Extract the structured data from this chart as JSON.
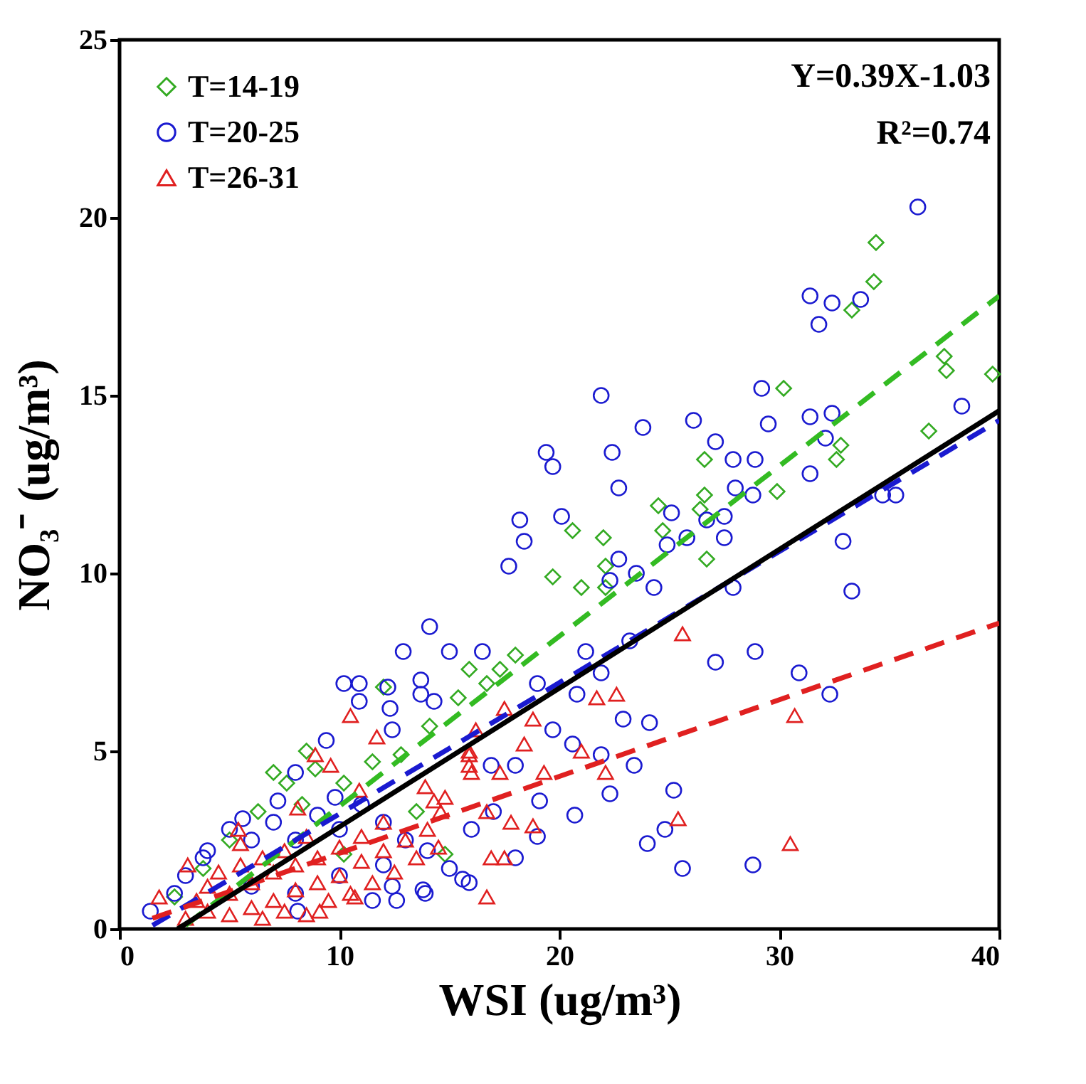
{
  "chart_data": {
    "type": "scatter",
    "xlabel": "WSI (ug/m³)",
    "ylabel": "NO₃⁻ (ug/m³)",
    "xlim": [
      0,
      40
    ],
    "ylim": [
      0,
      25
    ],
    "xticks": [
      0,
      10,
      20,
      30,
      40
    ],
    "yticks": [
      0,
      5,
      10,
      15,
      20,
      25
    ],
    "grid": false,
    "legend": "top left",
    "annotations": [
      "Y=0.39X-1.03",
      "R²=0.74"
    ],
    "series": [
      {
        "name": "T=14-19",
        "color": "#33aa22",
        "marker": "diamond",
        "x": [
          34.4,
          34.3,
          33.3,
          37.5,
          37.6,
          39.7,
          36.8,
          32.8,
          32.6,
          30.2,
          29.9,
          26.6,
          26.6,
          26.4,
          26.7,
          24.5,
          24.7,
          22.0,
          20.6,
          19.7,
          21.0,
          22.1,
          22.1,
          17.3,
          18.0,
          16.7,
          15.4,
          14.1,
          12.8,
          11.5,
          10.2,
          8.9,
          7.6,
          6.3,
          5.0,
          3.8,
          2.5,
          8.3,
          13.5,
          14.8,
          10.2,
          7.0,
          8.5,
          12.0,
          15.9
        ],
        "values": [
          19.3,
          18.2,
          17.4,
          16.1,
          15.7,
          15.6,
          14.0,
          13.6,
          13.2,
          15.2,
          12.3,
          13.2,
          12.2,
          11.8,
          10.4,
          11.9,
          11.2,
          11.0,
          11.2,
          9.9,
          9.6,
          10.2,
          9.6,
          7.3,
          7.7,
          6.9,
          6.5,
          5.7,
          4.9,
          4.7,
          4.1,
          4.5,
          4.1,
          3.3,
          2.5,
          1.7,
          0.9,
          3.5,
          3.3,
          2.1,
          2.1,
          4.4,
          5.0,
          6.8,
          7.3
        ]
      },
      {
        "name": "T=20-25",
        "color": "#1a1ad0",
        "marker": "circle",
        "x": [
          36.3,
          31.4,
          32.4,
          33.7,
          31.8,
          38.3,
          29.2,
          21.9,
          23.8,
          26.1,
          27.1,
          19.4,
          19.7,
          22.4,
          22.7,
          27.9,
          28.9,
          29.5,
          31.4,
          32.4,
          32.1,
          31.4,
          28.0,
          28.8,
          27.5,
          27.5,
          26.7,
          25.1,
          25.8,
          24.9,
          22.7,
          23.5,
          22.3,
          24.3,
          18.2,
          18.4,
          17.7,
          20.1,
          34.7,
          35.3,
          32.9,
          33.3,
          27.9,
          27.1,
          28.9,
          30.9,
          32.3,
          24.1,
          22.9,
          25.2,
          24.8,
          24.0,
          25.6,
          28.8,
          22.3,
          23.4,
          20.7,
          19.0,
          15.6,
          13.8,
          12.6,
          14.1,
          12.9,
          15.0,
          16.5,
          21.2,
          23.2,
          20.8,
          21.9,
          19.0,
          20.6,
          19.7,
          21.9,
          19.1,
          18.0,
          16.9,
          12.4,
          13.7,
          12.2,
          14.3,
          10.2,
          10.9,
          12.3,
          10.9,
          13.7,
          9.4,
          8.0,
          7.2,
          5.6,
          3.8,
          1.4,
          2.5,
          13.9,
          12.4,
          11.5,
          8.1,
          9.8,
          15.0,
          15.9,
          3.0,
          4.0,
          5.0,
          6.0,
          7.0,
          8.0,
          9.0,
          10.0,
          11.0,
          12.0,
          13.0,
          6.0,
          8.0,
          10.0,
          12.0,
          14.0,
          16.0,
          17.0,
          18.0
        ],
        "values": [
          20.3,
          17.8,
          17.6,
          17.7,
          17.0,
          14.7,
          15.2,
          15.0,
          14.1,
          14.3,
          13.7,
          13.4,
          13.0,
          13.4,
          12.4,
          13.2,
          13.2,
          14.2,
          14.4,
          14.5,
          13.8,
          12.8,
          12.4,
          12.2,
          11.6,
          11.0,
          11.5,
          11.7,
          11.0,
          10.8,
          10.4,
          10.0,
          9.8,
          9.6,
          11.5,
          10.9,
          10.2,
          11.6,
          12.2,
          12.2,
          10.9,
          9.5,
          9.6,
          7.5,
          7.8,
          7.2,
          6.6,
          5.8,
          5.9,
          3.9,
          2.8,
          2.4,
          1.7,
          1.8,
          3.8,
          4.6,
          3.2,
          2.6,
          1.4,
          1.1,
          0.8,
          8.5,
          7.8,
          7.8,
          7.8,
          7.8,
          8.1,
          6.6,
          7.2,
          6.9,
          5.2,
          5.6,
          4.9,
          3.6,
          4.6,
          4.6,
          5.6,
          7.0,
          6.8,
          6.4,
          6.9,
          6.9,
          6.2,
          6.4,
          6.6,
          5.3,
          4.4,
          3.6,
          3.1,
          2.0,
          0.5,
          1.0,
          1.0,
          1.2,
          0.8,
          0.5,
          3.7,
          1.7,
          1.3,
          1.5,
          2.2,
          2.8,
          2.5,
          3.0,
          2.5,
          3.2,
          2.8,
          3.5,
          3.0,
          2.5,
          1.2,
          1.0,
          1.5,
          1.8,
          2.2,
          2.8,
          3.3,
          2.0
        ]
      },
      {
        "name": "T=26-31",
        "color": "#e02020",
        "marker": "triangle",
        "x": [
          25.6,
          30.7,
          30.5,
          25.4,
          22.6,
          21.7,
          22.1,
          21.0,
          19.3,
          18.8,
          17.5,
          18.4,
          17.3,
          16.2,
          15.9,
          16.0,
          16.7,
          17.8,
          18.8,
          17.5,
          16.9,
          16.7,
          14.3,
          14.8,
          13.9,
          11.7,
          10.5,
          8.9,
          9.6,
          10.9,
          8.1,
          5.4,
          3.1,
          1.8,
          15.9,
          15.9,
          14.6,
          9.1,
          10.7,
          3.0,
          3.5,
          4.0,
          4.0,
          4.5,
          5.0,
          5.0,
          5.5,
          5.5,
          6.0,
          6.0,
          6.5,
          6.5,
          7.0,
          7.0,
          7.5,
          7.5,
          8.0,
          8.0,
          8.5,
          8.5,
          9.0,
          9.0,
          9.5,
          10.0,
          10.0,
          10.5,
          11.0,
          11.0,
          11.5,
          12.0,
          12.0,
          12.5,
          13.0,
          13.5,
          14.0,
          14.5
        ],
        "values": [
          8.3,
          6.0,
          2.4,
          3.1,
          6.6,
          6.5,
          4.4,
          5.0,
          4.4,
          5.9,
          6.2,
          5.2,
          4.4,
          5.6,
          4.9,
          4.4,
          3.3,
          3.0,
          2.9,
          2.0,
          2.0,
          0.9,
          3.6,
          3.7,
          4.0,
          5.4,
          6.0,
          4.9,
          4.6,
          3.9,
          3.4,
          2.8,
          1.8,
          0.9,
          5.0,
          4.6,
          3.3,
          0.5,
          0.9,
          0.3,
          0.8,
          0.5,
          1.2,
          1.6,
          0.4,
          1.0,
          1.8,
          2.4,
          0.6,
          1.3,
          2.0,
          0.3,
          0.8,
          1.6,
          2.2,
          0.5,
          1.1,
          1.8,
          2.6,
          0.4,
          1.3,
          2.0,
          0.8,
          1.5,
          2.3,
          1.0,
          1.9,
          2.6,
          1.3,
          2.2,
          3.0,
          1.6,
          2.5,
          2.0,
          2.8,
          2.3
        ]
      },
      {
        "type": "line",
        "color": "#33bb22",
        "line_style": "dashed",
        "x": [
          3.0,
          40
        ],
        "values": [
          0.1,
          17.8
        ]
      },
      {
        "type": "line",
        "color": "#1a1ad0",
        "line_style": "dashed",
        "x": [
          1.5,
          40
        ],
        "values": [
          0.1,
          14.3
        ]
      },
      {
        "type": "line",
        "color": "#e02020",
        "line_style": "dashed",
        "x": [
          1.5,
          40
        ],
        "values": [
          0.3,
          8.6
        ]
      },
      {
        "type": "line",
        "color": "#000000",
        "line_style": "solid",
        "x": [
          2.64,
          40
        ],
        "values": [
          0.0,
          14.57
        ]
      }
    ]
  }
}
